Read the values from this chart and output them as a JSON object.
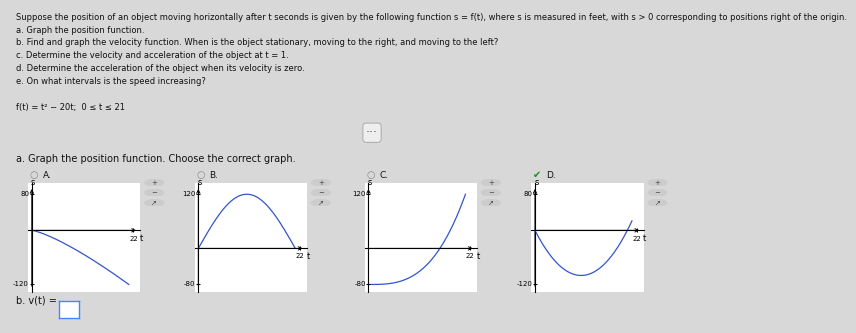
{
  "top_text_line1": "Suppose the position of an object moving horizontally after t seconds is given by the following function s = f(t), where s is measured in feet, with s > 0 corresponding to positions right of the origin.",
  "top_lines": [
    "a. Graph the position function.",
    "b. Find and graph the velocity function. When is the object stationary, moving to the right, and moving to the left?",
    "c. Determine the velocity and acceleration of the object at t = 1.",
    "d. Determine the acceleration of the object when its velocity is zero.",
    "e. On what intervals is the speed increasing?"
  ],
  "function_label": "f(t) = t² − 20t;  0 ≤ t ≤ 21",
  "question_a": "a. Graph the position function. Choose the correct graph.",
  "question_b": "b. v(t) =",
  "graphs": [
    {
      "label": "A.",
      "checked": false,
      "ylim": [
        -120,
        80
      ],
      "xlim": [
        0,
        22
      ],
      "ytick_top": 80,
      "ytick_bot": -120,
      "xtick": 22,
      "curve_type": "A",
      "color": "#3355cc"
    },
    {
      "label": "B.",
      "checked": false,
      "ylim": [
        -80,
        120
      ],
      "xlim": [
        0,
        22
      ],
      "ytick_top": 120,
      "ytick_bot": -80,
      "xtick": 22,
      "curve_type": "B",
      "color": "#3355cc"
    },
    {
      "label": "C.",
      "checked": false,
      "ylim": [
        -80,
        120
      ],
      "xlim": [
        0,
        22
      ],
      "ytick_top": 120,
      "ytick_bot": -80,
      "xtick": 22,
      "curve_type": "C",
      "color": "#3355cc"
    },
    {
      "label": "D.",
      "checked": true,
      "ylim": [
        -120,
        80
      ],
      "xlim": [
        0,
        22
      ],
      "ytick_top": 80,
      "ytick_bot": -120,
      "xtick": 22,
      "curve_type": "D",
      "color": "#3355cc"
    }
  ],
  "top_bg": "#ffffff",
  "bot_bg": "#ffffff",
  "fig_bg": "#d8d8d8",
  "sep_color": "#cccccc",
  "text_color": "#111111",
  "check_color": "#228B22",
  "radio_color": "#888888"
}
